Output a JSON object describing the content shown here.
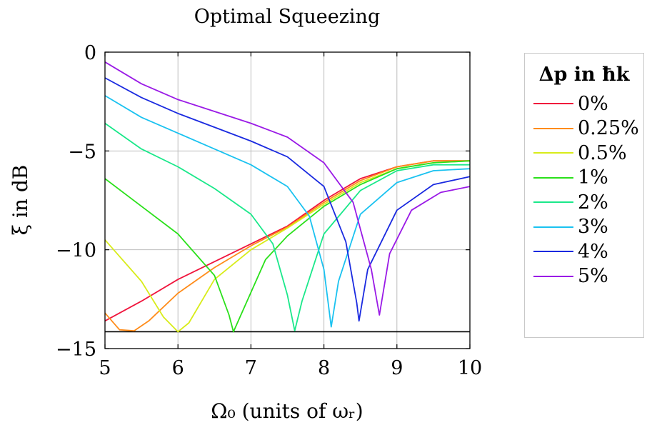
{
  "chart_data": {
    "type": "line",
    "title": "Optimal Squeezing",
    "xlabel": "Ω₀ (units of ωᵣ)",
    "ylabel": "ξ in dB",
    "xlim": [
      5,
      10
    ],
    "ylim": [
      -15,
      0
    ],
    "xticks": [
      5,
      6,
      7,
      8,
      9,
      10
    ],
    "yticks": [
      0,
      -5,
      -10,
      -15
    ],
    "ytick_labels": [
      "0",
      "−5",
      "−10",
      "−15"
    ],
    "grid": true,
    "legend": {
      "title": "Δp in ħk",
      "position": "right"
    },
    "reference_line": {
      "y": -14.15,
      "color": "#000000"
    },
    "series": [
      {
        "name": "0%",
        "color": "#f0143c",
        "x": [
          5,
          5.5,
          6,
          6.5,
          7,
          7.5,
          8,
          8.5,
          9,
          9.5,
          10
        ],
        "y": [
          -13.6,
          -12.6,
          -11.5,
          -10.6,
          -9.7,
          -8.8,
          -7.5,
          -6.4,
          -5.8,
          -5.5,
          -5.5
        ]
      },
      {
        "name": "0.25%",
        "color": "#ff8c1a",
        "x": [
          5,
          5.2,
          5.4,
          5.6,
          6,
          6.5,
          7,
          7.5,
          8,
          8.5,
          9,
          9.5,
          10
        ],
        "y": [
          -13.2,
          -14.05,
          -14.1,
          -13.6,
          -12.2,
          -10.9,
          -9.8,
          -8.85,
          -7.6,
          -6.5,
          -5.8,
          -5.5,
          -5.5
        ]
      },
      {
        "name": "0.5%",
        "color": "#d8ec1a",
        "x": [
          5,
          5.5,
          5.8,
          6,
          6.15,
          6.5,
          7,
          7.5,
          8,
          8.5,
          9,
          9.5,
          10
        ],
        "y": [
          -9.5,
          -11.6,
          -13.4,
          -14.15,
          -13.7,
          -11.5,
          -10.0,
          -8.9,
          -7.7,
          -6.6,
          -5.9,
          -5.6,
          -5.5
        ]
      },
      {
        "name": "1%",
        "color": "#2ae01a",
        "x": [
          5,
          5.5,
          6,
          6.5,
          6.7,
          6.76,
          6.85,
          7.2,
          7.5,
          8,
          8.5,
          9,
          9.5,
          10
        ],
        "y": [
          -6.4,
          -7.8,
          -9.2,
          -11.3,
          -13.3,
          -14.15,
          -13.4,
          -10.5,
          -9.3,
          -7.8,
          -6.7,
          -5.9,
          -5.6,
          -5.5
        ]
      },
      {
        "name": "2%",
        "color": "#1ae88a",
        "x": [
          5,
          5.5,
          6,
          6.5,
          7,
          7.3,
          7.5,
          7.6,
          7.7,
          8,
          8.5,
          9,
          9.5,
          10
        ],
        "y": [
          -3.6,
          -4.9,
          -5.8,
          -6.9,
          -8.2,
          -9.7,
          -12.3,
          -14.1,
          -12.6,
          -9.2,
          -7.0,
          -6.0,
          -5.7,
          -5.7
        ]
      },
      {
        "name": "3%",
        "color": "#1ac2f0",
        "x": [
          5,
          5.5,
          6,
          6.5,
          7,
          7.5,
          7.8,
          8.0,
          8.1,
          8.2,
          8.5,
          9,
          9.5,
          10
        ],
        "y": [
          -2.2,
          -3.3,
          -4.1,
          -4.9,
          -5.7,
          -6.8,
          -8.3,
          -11.0,
          -13.9,
          -11.6,
          -8.2,
          -6.6,
          -6.0,
          -5.9
        ]
      },
      {
        "name": "4%",
        "color": "#1a2ae0",
        "x": [
          5,
          5.5,
          6,
          6.5,
          7,
          7.5,
          8,
          8.3,
          8.45,
          8.48,
          8.6,
          9,
          9.5,
          10
        ],
        "y": [
          -1.3,
          -2.3,
          -3.1,
          -3.8,
          -4.5,
          -5.3,
          -6.8,
          -9.6,
          -12.7,
          -13.6,
          -11.0,
          -8.0,
          -6.7,
          -6.3
        ]
      },
      {
        "name": "5%",
        "color": "#9a1ae6",
        "x": [
          5,
          5.5,
          6,
          6.5,
          7,
          7.5,
          8,
          8.4,
          8.65,
          8.76,
          8.9,
          9.2,
          9.6,
          10
        ],
        "y": [
          -0.5,
          -1.6,
          -2.4,
          -3.0,
          -3.6,
          -4.3,
          -5.6,
          -7.6,
          -11.0,
          -13.3,
          -10.2,
          -8.0,
          -7.1,
          -6.8
        ]
      }
    ]
  }
}
